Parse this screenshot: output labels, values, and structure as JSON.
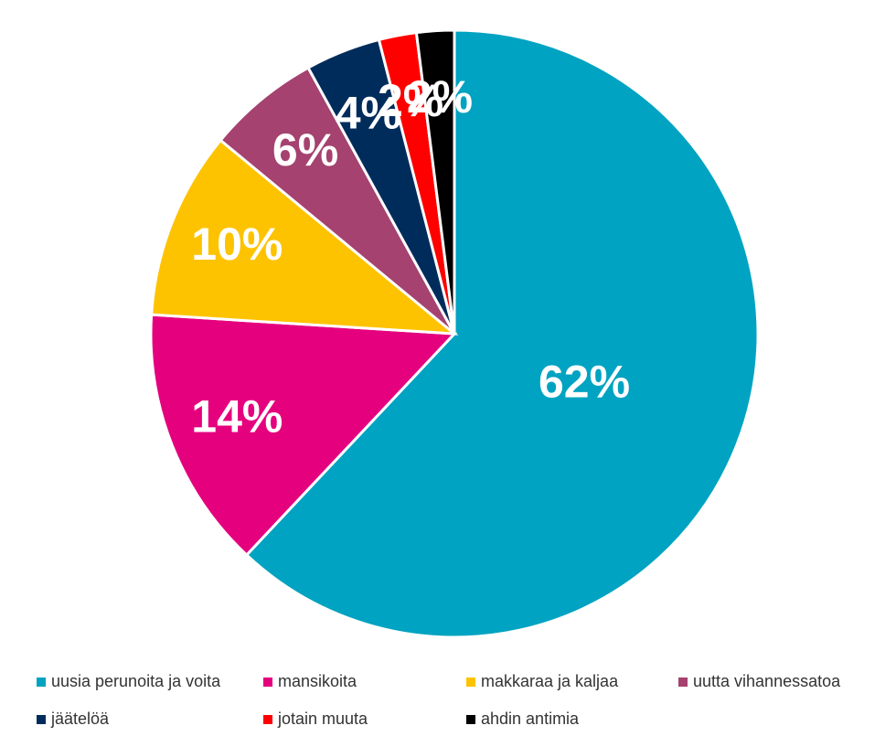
{
  "chart_data": {
    "type": "pie",
    "categories": [
      "uusia perunoita ja voita",
      "mansikoita",
      "makkaraa ja kaljaa",
      "uutta vihannessatoa",
      "jäätelöä",
      "jotain muuta",
      "ahdin antimia"
    ],
    "values": [
      62,
      14,
      10,
      6,
      4,
      2,
      2
    ],
    "value_labels": [
      "62%",
      "14%",
      "10%",
      "6%",
      "4%",
      "2%",
      "2%"
    ],
    "colors": [
      "#00a3c1",
      "#e5007e",
      "#fdc300",
      "#a5426f",
      "#002c5b",
      "#ff0000",
      "#000000"
    ]
  }
}
